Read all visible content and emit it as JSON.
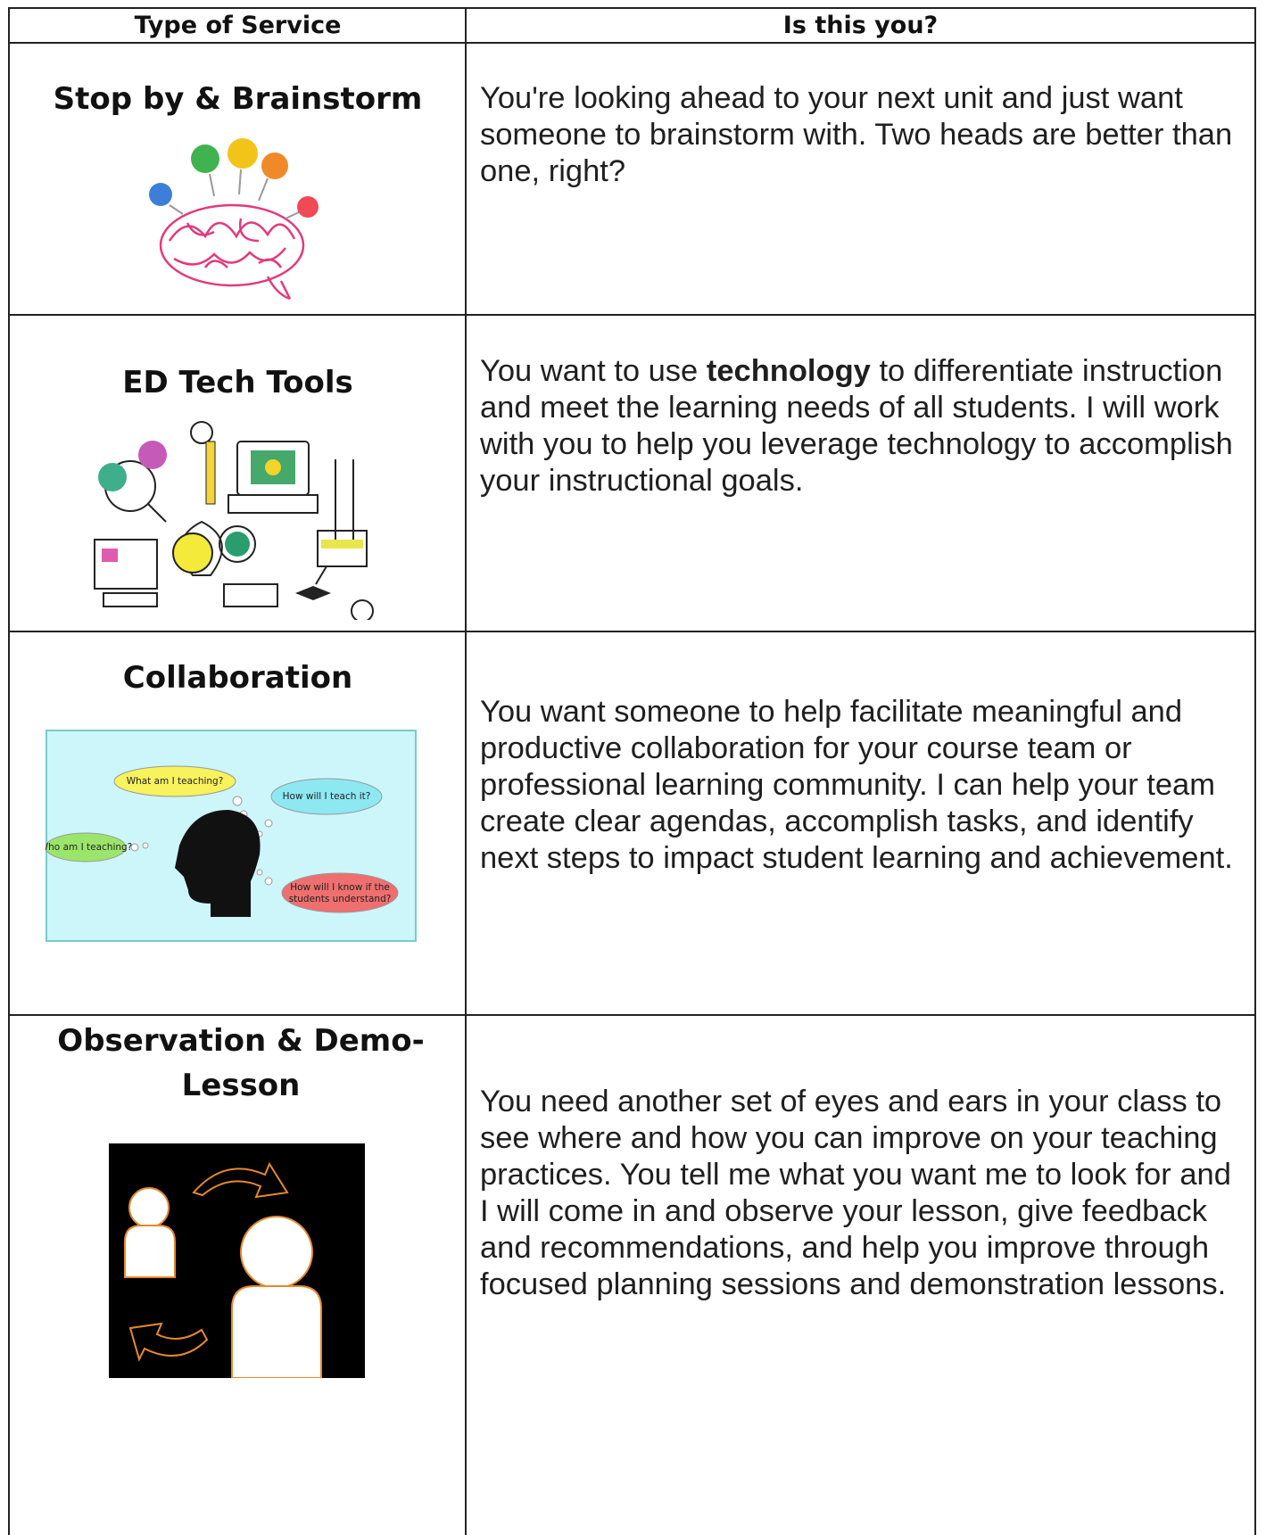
{
  "table": {
    "headers": [
      "Type of Service",
      "Is this you?"
    ],
    "rows": [
      {
        "title": "Stop by & Brainstorm",
        "description": "You're looking ahead to your next unit and just want someone to brainstorm with.  Two heads are better than one, right?"
      },
      {
        "title": "ED Tech Tools",
        "description": [
          "You want to use ",
          "technology",
          " to differentiate instruction and meet the learning needs of all students. I will work with you to help you leverage technology to accomplish your instructional goals."
        ]
      },
      {
        "title": "Collaboration",
        "description": "You want someone to help facilitate meaningful and productive collaboration for your course team or professional learning community. I can help your team create clear agendas, accomplish tasks, and identify next steps to impact student learning and achievement.",
        "image_bubbles": [
          "What am I teaching?",
          "How will I teach it?",
          "Who am I teaching?",
          "How will I know if the",
          "students understand?"
        ]
      },
      {
        "title": "Observation & Demo-Lesson",
        "description": "You need another set of eyes and ears in your class to see where and how you can improve on your teaching practices. You tell me what you want me to look for and I will come in and observe your lesson, give feedback and recommendations, and help you improve through focused planning sessions and demonstration lessons."
      }
    ]
  }
}
